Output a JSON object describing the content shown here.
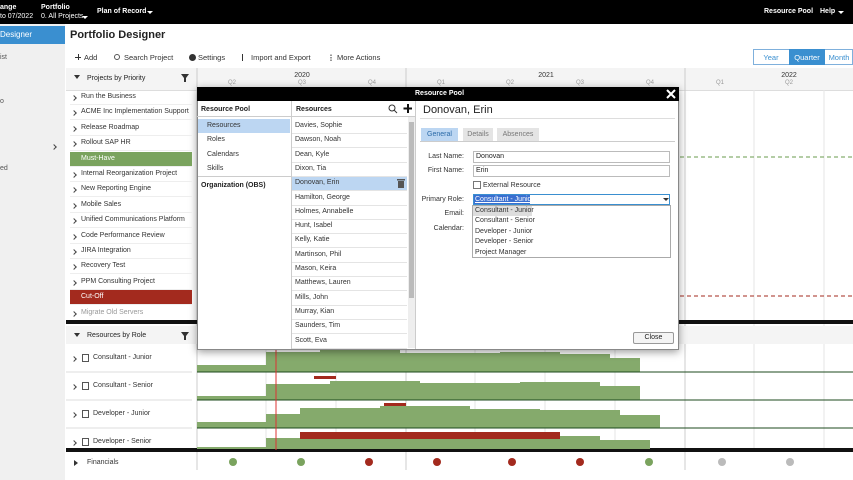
{
  "topbar": {
    "change_label": "ange",
    "change_range": "to 07/2022",
    "portfolio_label": "Portfolio",
    "portfolio_value": "0. All Projects",
    "plan": "Plan of Record",
    "resource_pool": "Resource Pool",
    "help": "Help"
  },
  "sidebar": {
    "items": [
      "Designer",
      "ist",
      "o",
      "ed"
    ]
  },
  "page_title": "Portfolio Designer",
  "toolbar": {
    "buttons": [
      "Add",
      "Search Project",
      "Settings",
      "Import and Export",
      "More Actions"
    ]
  },
  "view_toggle": [
    "Year",
    "Quarter",
    "Month"
  ],
  "timeline": {
    "years": [
      "2020",
      "2021",
      "2022"
    ],
    "quarters": [
      "Q2",
      "Q3",
      "Q4",
      "Q1",
      "Q2",
      "Q3",
      "Q4",
      "Q1",
      "Q2"
    ]
  },
  "projects": {
    "title": "Projects by Priority",
    "above": [
      "Run the Business",
      "ACME Inc Implementation Support",
      "Release Roadmap",
      "Rollout SAP HR"
    ],
    "must_have": "Must-Have",
    "middle": [
      "Internal Reorganization Project",
      "New Reporting Engine",
      "Mobile Sales",
      "Unified Communications Platform",
      "Code Performance Review",
      "JIRA Integration",
      "Recovery Test",
      "PPM Consulting Project"
    ],
    "cut_off": "Cut-Off",
    "below": [
      "Migrate Old Servers"
    ]
  },
  "roles": {
    "title": "Resources by Role",
    "rows": [
      "Consultant - Junior",
      "Consultant - Senior",
      "Developer - Junior",
      "Developer - Senior"
    ]
  },
  "financials": "Financials",
  "modal": {
    "title": "Resource Pool",
    "nav": {
      "header": "Resource Pool",
      "items": [
        "Resources",
        "Roles",
        "Calendars",
        "Skills"
      ],
      "org": "Organization (OBS)"
    },
    "list": {
      "header": "Resources",
      "items": [
        "Davies, Sophie",
        "Dawson, Noah",
        "Dean, Kyle",
        "Dixon, Tia",
        "Donovan, Erin",
        "Hamilton, George",
        "Holmes, Annabelle",
        "Hunt, Isabel",
        "Kelly, Katie",
        "Martinson, Phil",
        "Mason, Keira",
        "Matthews, Lauren",
        "Mills, John",
        "Murray, Kian",
        "Saunders, Tim",
        "Scott, Eva"
      ]
    },
    "detail": {
      "name": "Donovan, Erin",
      "tabs": [
        "General",
        "Details",
        "Absences"
      ],
      "last_name_label": "Last Name:",
      "last_name": "Donovan",
      "first_name_label": "First Name:",
      "first_name": "Erin",
      "external": "External Resource",
      "role_label": "Primary Role:",
      "role": "Consultant - Junior",
      "email_label": "Email:",
      "calendar_label": "Calendar:",
      "role_options": [
        "Consultant - Junior",
        "Consultant - Senior",
        "Developer - Junior",
        "Developer - Senior",
        "Project Manager"
      ]
    },
    "close": "Close"
  }
}
